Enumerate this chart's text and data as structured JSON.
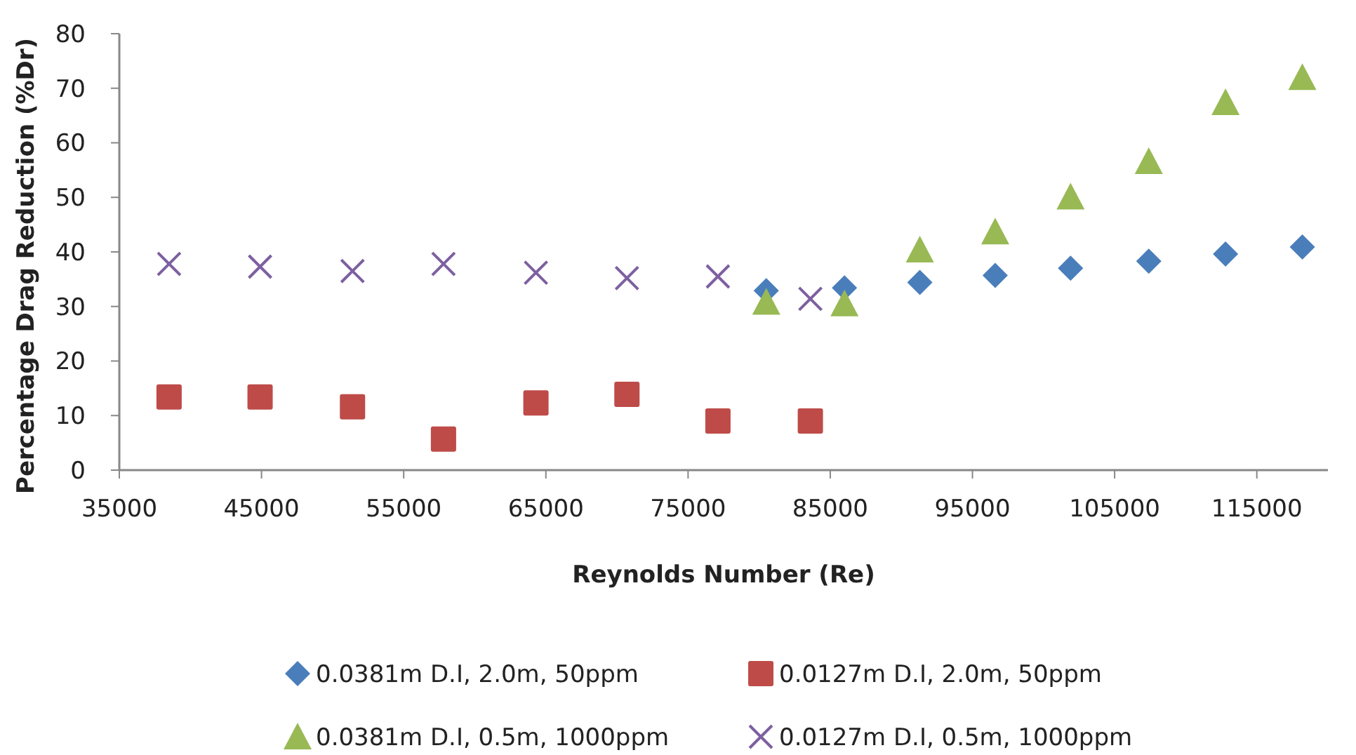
{
  "chart_data": {
    "type": "scatter",
    "xlabel": "Reynolds Number (Re)",
    "ylabel": "Percentage Drag Reduction (%Dr)",
    "xlim": [
      35000,
      120000
    ],
    "xticks": [
      35000,
      45000,
      55000,
      65000,
      75000,
      85000,
      95000,
      105000,
      115000
    ],
    "ylim": [
      0,
      80
    ],
    "yticks": [
      0,
      10,
      20,
      30,
      40,
      50,
      60,
      70,
      80
    ],
    "grid": false,
    "legend": "bottom",
    "series": [
      {
        "name": "0.0381m D.I, 2.0m, 50ppm",
        "color": "#4a7ebb",
        "marker": "diamond",
        "x": [
          80500,
          86000,
          91300,
          96600,
          101900,
          107400,
          112800,
          118200
        ],
        "values": [
          32.9,
          33.4,
          34.4,
          35.7,
          37.0,
          38.3,
          39.6,
          40.9
        ]
      },
      {
        "name": "0.0127m D.I, 2.0m, 50ppm",
        "color": "#be4b48",
        "marker": "square",
        "x": [
          38500,
          44900,
          51400,
          57800,
          64300,
          70700,
          77100,
          83600
        ],
        "values": [
          13.4,
          13.4,
          11.6,
          5.7,
          12.3,
          13.9,
          9.0,
          9.0
        ]
      },
      {
        "name": "0.0381m D.I, 0.5m, 1000ppm",
        "color": "#98b954",
        "marker": "triangle",
        "x": [
          80500,
          86000,
          91300,
          96600,
          101900,
          107400,
          112800,
          118200
        ],
        "values": [
          30.8,
          30.5,
          40.4,
          43.7,
          50.1,
          56.6,
          67.4,
          72.0
        ]
      },
      {
        "name": "0.0127m D.I, 0.5m, 1000ppm",
        "color": "#7d60a0",
        "marker": "cross",
        "x": [
          38500,
          44900,
          51400,
          57800,
          64300,
          70700,
          77100,
          83600
        ],
        "values": [
          37.8,
          37.3,
          36.5,
          37.8,
          36.2,
          35.2,
          35.5,
          31.4
        ]
      }
    ]
  }
}
